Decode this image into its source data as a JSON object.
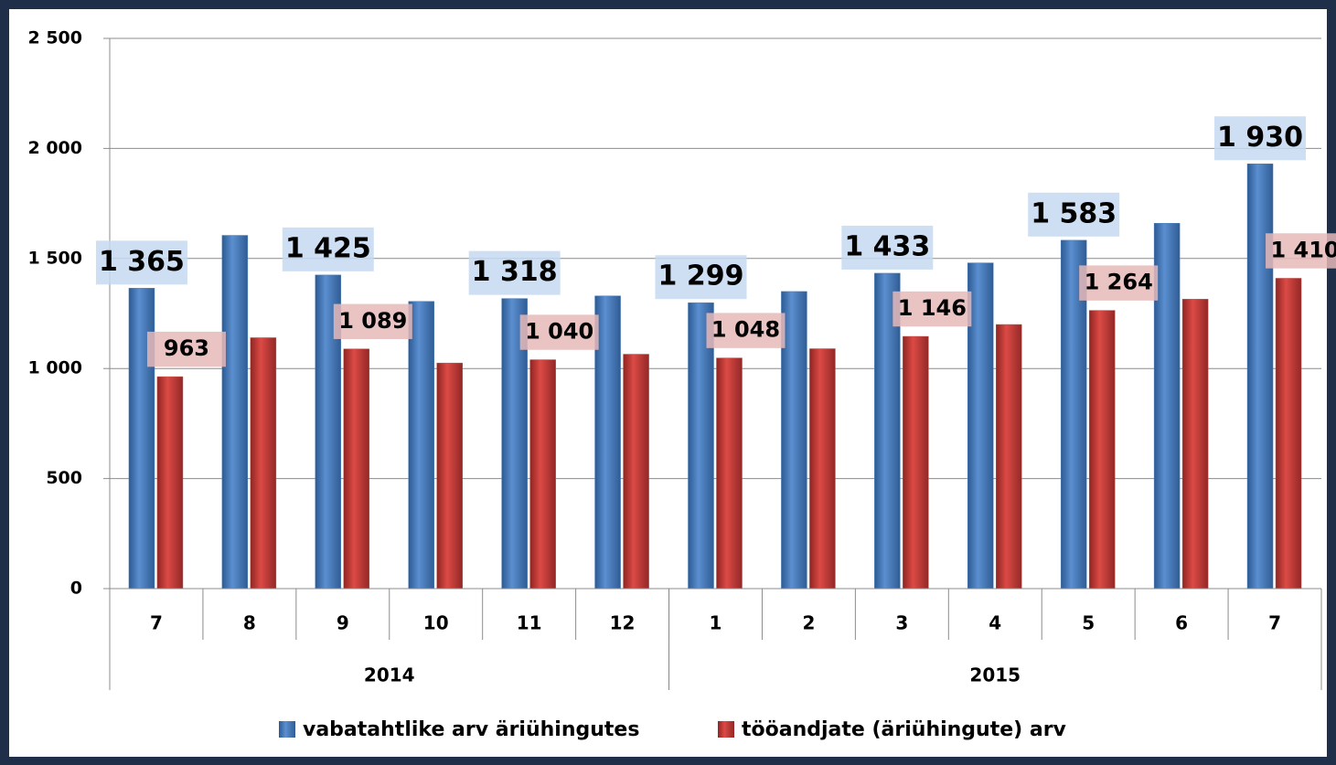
{
  "chart_data": {
    "type": "bar",
    "categories": [
      "7",
      "8",
      "9",
      "10",
      "11",
      "12",
      "1",
      "2",
      "3",
      "4",
      "5",
      "6",
      "7"
    ],
    "group_labels": [
      "2014",
      "2015"
    ],
    "group_sizes": [
      6,
      7
    ],
    "series": [
      {
        "name": "vabatahtlike arv äriühingutes",
        "color": "#4f81bd",
        "values": [
          1365,
          1605,
          1425,
          1305,
          1318,
          1330,
          1299,
          1350,
          1433,
          1480,
          1583,
          1660,
          1930
        ],
        "value_labels": [
          "1 365",
          null,
          "1 425",
          null,
          "1 318",
          null,
          "1 299",
          null,
          "1 433",
          null,
          "1 583",
          null,
          "1 930"
        ]
      },
      {
        "name": "tööandjate (äriühingute) arv",
        "color": "#c0504d",
        "values": [
          963,
          1140,
          1089,
          1025,
          1040,
          1065,
          1048,
          1090,
          1146,
          1200,
          1264,
          1315,
          1410
        ],
        "value_labels": [
          "963",
          null,
          "1 089",
          null,
          "1 040",
          null,
          "1 048",
          null,
          "1 146",
          null,
          "1 264",
          null,
          "1 410"
        ]
      }
    ],
    "ylim": [
      0,
      2500
    ],
    "yticks": [
      0,
      500,
      {
        "value": 1000,
        "label": "1 000"
      },
      {
        "value": 1500,
        "label": "1 500"
      },
      {
        "value": 2000,
        "label": "2 000"
      },
      {
        "value": 2500,
        "label": "2 500"
      }
    ],
    "grid": true
  }
}
